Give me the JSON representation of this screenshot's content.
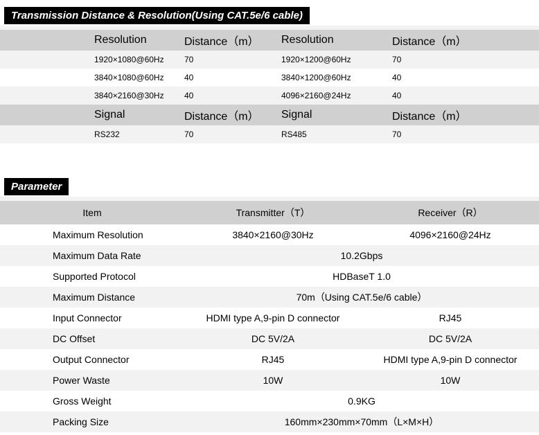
{
  "section1": {
    "title": "Transmission Distance & Resolution(Using CAT.5e/6 cable)",
    "headers1": {
      "res1": "Resolution",
      "dist1": "Distance（m）",
      "res2": "Resolution",
      "dist2": "Distance（m）"
    },
    "rows1": [
      {
        "r1": "1920×1080@60Hz",
        "d1": "70",
        "r2": "1920×1200@60Hz",
        "d2": "70"
      },
      {
        "r1": "3840×1080@60Hz",
        "d1": "40",
        "r2": "3840×1200@60Hz",
        "d2": "40"
      },
      {
        "r1": "3840×2160@30Hz",
        "d1": "40",
        "r2": "4096×2160@24Hz",
        "d2": "40"
      }
    ],
    "headers2": {
      "s1": "Signal",
      "d1": "Distance（m）",
      "s2": "Signal",
      "d2": "Distance（m）"
    },
    "rows2": [
      {
        "s1": "RS232",
        "d1": "70",
        "s2": "RS485",
        "d2": "70"
      }
    ]
  },
  "section2": {
    "title": "Parameter",
    "headers": {
      "item": "Item",
      "tx": "Transmitter（T）",
      "rx": "Receiver（R）"
    },
    "rows": [
      {
        "item": "Maximum Resolution",
        "tx": "3840×2160@30Hz",
        "rx": "4096×2160@24Hz",
        "bg": "white"
      },
      {
        "item": "Maximum Data Rate",
        "span": "10.2Gbps",
        "bg": "light"
      },
      {
        "item": "Supported Protocol",
        "span": "HDBaseT 1.0",
        "bg": "white"
      },
      {
        "item": "Maximum Distance",
        "span": "70m（Using CAT.5e/6 cable）",
        "bg": "light"
      },
      {
        "item": "Input Connector",
        "tx": "HDMI type A,9-pin D connector",
        "rx": "RJ45",
        "bg": "white"
      },
      {
        "item": "DC Offset",
        "tx": "DC 5V/2A",
        "rx": "DC 5V/2A",
        "bg": "light"
      },
      {
        "item": "Output Connector",
        "tx": "RJ45",
        "rx": "HDMI type A,9-pin D connector",
        "bg": "white"
      },
      {
        "item": "Power Waste",
        "tx": "10W",
        "rx": "10W",
        "bg": "light"
      },
      {
        "item": "Gross Weight",
        "span": "0.9KG",
        "bg": "white"
      },
      {
        "item": "Packing Size",
        "span": "160mm×230mm×70mm（L×M×H）",
        "bg": "light"
      }
    ]
  }
}
